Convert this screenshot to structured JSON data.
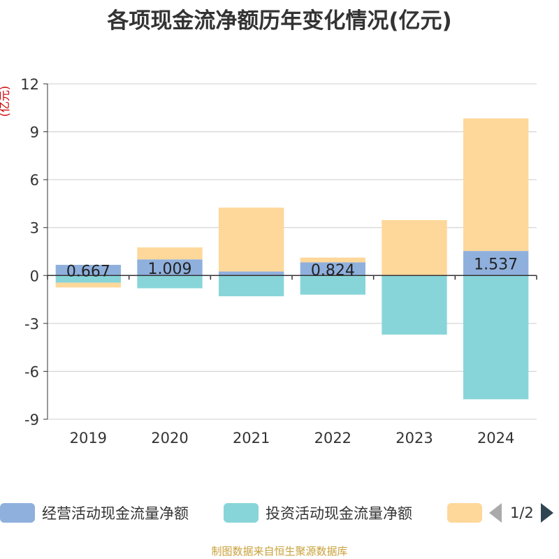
{
  "chart_data": {
    "type": "bar",
    "title": "各项现金流净额历年变化情况(亿元)",
    "ylabel": "(亿元)",
    "xlabel": "",
    "ylim": [
      -9,
      12
    ],
    "yticks": [
      12,
      9,
      6,
      3,
      0,
      -3,
      -6,
      -9
    ],
    "categories": [
      "2019",
      "2020",
      "2021",
      "2022",
      "2023",
      "2024"
    ],
    "series": [
      {
        "name": "经营活动现金流量净额",
        "color": "#8fb0dd",
        "values": [
          0.667,
          1.009,
          0.251,
          0.824,
          0.02,
          1.537
        ],
        "labels": [
          "0.667",
          "1.009",
          "",
          "0.824",
          "",
          "1.537"
        ]
      },
      {
        "name": "投资活动现金流量净额",
        "color": "#88d5d9",
        "values": [
          -0.45,
          -0.8,
          -1.3,
          -1.2,
          -3.7,
          -7.75
        ]
      },
      {
        "name": "",
        "color": "#fdd89a",
        "values": [
          -0.3,
          0.75,
          4.0,
          0.3,
          3.45,
          8.3
        ]
      }
    ],
    "grid": true,
    "legend": "bottom"
  },
  "legend": {
    "page": "1/2"
  },
  "source": "制图数据来自恒生聚源数据库"
}
